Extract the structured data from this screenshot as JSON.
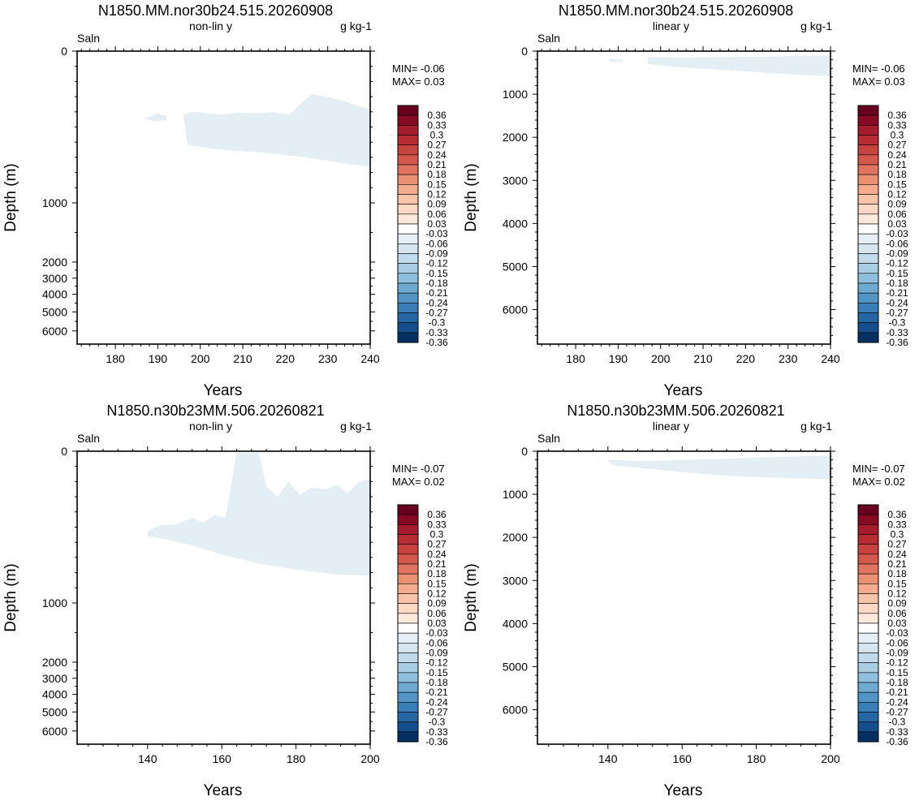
{
  "colorbar": {
    "labels": [
      "0.36",
      "0.33",
      "0.3",
      "0.27",
      "0.24",
      "0.21",
      "0.18",
      "0.15",
      "0.12",
      "0.09",
      "0.06",
      "0.03",
      "-0.03",
      "-0.06",
      "-0.09",
      "-0.12",
      "-0.15",
      "-0.18",
      "-0.21",
      "-0.24",
      "-0.27",
      "-0.3",
      "-0.33",
      "-0.36"
    ],
    "colors": [
      "#67001f",
      "#870a24",
      "#a51c2c",
      "#b82c33",
      "#c6433f",
      "#d3594d",
      "#df7561",
      "#ea9174",
      "#f3ac8e",
      "#f8c5aa",
      "#fbd9c4",
      "#fde8da",
      "#ffffff",
      "#e6eff6",
      "#d6e6f1",
      "#c2dbec",
      "#a9cde3",
      "#8ebfdc",
      "#6ea9d0",
      "#5295c5",
      "#3a7eb8",
      "#2566a3",
      "#154e8a",
      "#053061"
    ]
  },
  "chart_data": [
    {
      "type": "heatmap",
      "title": "N1850.MM.nor30b24.515.20260908",
      "left_label": "Saln",
      "center_label": "non-lin y",
      "right_label": "g kg-1",
      "xlabel": "Years",
      "ylabel": "Depth (m)",
      "y_scale": "non-linear",
      "xlim": [
        171,
        240
      ],
      "ylim": [
        0,
        6500
      ],
      "xticks": [
        180,
        190,
        200,
        210,
        220,
        230,
        240
      ],
      "yticks": [
        0,
        1000,
        2000,
        3000,
        4000,
        5000,
        6000
      ],
      "min_label": "MIN= -0.06",
      "max_label": "MAX=  0.03",
      "anomaly_regions": [
        {
          "interval": "-0.03 to 0.03",
          "color": "#e4eef5",
          "outline": [
            [
              188,
              430
            ],
            [
              190,
              410
            ],
            [
              192,
              428
            ],
            [
              192,
              455
            ],
            [
              189,
              462
            ],
            [
              187,
              445
            ],
            [
              188,
              430
            ],
            [
              196,
              420
            ],
            [
              198,
              400
            ],
            [
              201,
              408
            ],
            [
              205,
              418
            ],
            [
              209,
              406
            ],
            [
              213,
              410
            ],
            [
              217,
              402
            ],
            [
              221,
              420
            ],
            [
              226,
              284
            ],
            [
              230,
              300
            ],
            [
              235,
              340
            ],
            [
              238,
              370
            ],
            [
              240,
              380
            ],
            [
              240,
              760
            ],
            [
              235,
              745
            ],
            [
              225,
              700
            ],
            [
              215,
              670
            ],
            [
              205,
              650
            ],
            [
              197,
              620
            ],
            [
              196,
              420
            ]
          ]
        }
      ]
    },
    {
      "type": "heatmap",
      "title": "N1850.MM.nor30b24.515.20260908",
      "left_label": "Saln",
      "center_label": "linear y",
      "right_label": "g kg-1",
      "xlabel": "Years",
      "ylabel": "Depth (m)",
      "y_scale": "linear",
      "xlim": [
        171,
        240
      ],
      "ylim": [
        0,
        6800
      ],
      "xticks": [
        180,
        190,
        200,
        210,
        220,
        230,
        240
      ],
      "yticks": [
        0,
        1000,
        2000,
        3000,
        4000,
        5000,
        6000
      ],
      "min_label": "MIN= -0.06",
      "max_label": "MAX=  0.03",
      "anomaly_regions": [
        {
          "interval": "-0.03 to 0.03",
          "color": "#e4eef5",
          "outline": [
            [
              197,
              140
            ],
            [
              205,
              150
            ],
            [
              215,
              140
            ],
            [
              225,
              130
            ],
            [
              232,
              110
            ],
            [
              240,
              100
            ],
            [
              240,
              570
            ],
            [
              232,
              550
            ],
            [
              222,
              480
            ],
            [
              212,
              420
            ],
            [
              205,
              380
            ],
            [
              197,
              300
            ],
            [
              197,
              140
            ]
          ]
        },
        {
          "interval": "-0.03 to 0.03",
          "color": "#e4eef5",
          "outline": [
            [
              188,
              180
            ],
            [
              191,
              200
            ],
            [
              191,
              260
            ],
            [
              188,
              240
            ],
            [
              188,
              180
            ]
          ]
        }
      ]
    },
    {
      "type": "heatmap",
      "title": "N1850.n30b23MM.506.20260821",
      "left_label": "Saln",
      "center_label": "non-lin y",
      "right_label": "g kg-1",
      "xlabel": "Years",
      "ylabel": "Depth (m)",
      "y_scale": "non-linear",
      "xlim": [
        121,
        200
      ],
      "ylim": [
        0,
        6500
      ],
      "xticks": [
        140,
        160,
        180,
        200
      ],
      "yticks": [
        0,
        1000,
        2000,
        3000,
        4000,
        5000,
        6000
      ],
      "min_label": "MIN= -0.07",
      "max_label": "MAX=  0.02",
      "anomaly_regions": [
        {
          "interval": "-0.03 to 0.03",
          "color": "#e4eef5",
          "outline": [
            [
              140,
              530
            ],
            [
              143,
              490
            ],
            [
              148,
              480
            ],
            [
              152,
              440
            ],
            [
              155,
              470
            ],
            [
              158,
              420
            ],
            [
              161,
              440
            ],
            [
              164,
              10
            ],
            [
              170,
              10
            ],
            [
              172,
              230
            ],
            [
              175,
              300
            ],
            [
              178,
              200
            ],
            [
              181,
              290
            ],
            [
              184,
              240
            ],
            [
              188,
              250
            ],
            [
              191,
              220
            ],
            [
              194,
              280
            ],
            [
              197,
              200
            ],
            [
              200,
              180
            ],
            [
              200,
              820
            ],
            [
              190,
              810
            ],
            [
              180,
              780
            ],
            [
              170,
              740
            ],
            [
              160,
              680
            ],
            [
              152,
              620
            ],
            [
              145,
              580
            ],
            [
              140,
              560
            ],
            [
              140,
              530
            ]
          ]
        }
      ]
    },
    {
      "type": "heatmap",
      "title": "N1850.n30b23MM.506.20260821",
      "left_label": "Saln",
      "center_label": "linear y",
      "right_label": "g kg-1",
      "xlabel": "Years",
      "ylabel": "Depth (m)",
      "y_scale": "linear",
      "xlim": [
        121,
        200
      ],
      "ylim": [
        0,
        6800
      ],
      "xticks": [
        140,
        160,
        180,
        200
      ],
      "yticks": [
        0,
        1000,
        2000,
        3000,
        4000,
        5000,
        6000
      ],
      "min_label": "MIN= -0.07",
      "max_label": "MAX=  0.02",
      "anomaly_regions": [
        {
          "interval": "-0.03 to 0.03",
          "color": "#e4eef5",
          "outline": [
            [
              140,
              200
            ],
            [
              150,
              230
            ],
            [
              160,
              200
            ],
            [
              170,
              180
            ],
            [
              180,
              150
            ],
            [
              190,
              120
            ],
            [
              200,
              100
            ],
            [
              200,
              650
            ],
            [
              190,
              630
            ],
            [
              180,
              600
            ],
            [
              170,
              560
            ],
            [
              160,
              480
            ],
            [
              150,
              400
            ],
            [
              142,
              330
            ],
            [
              140,
              260
            ],
            [
              140,
              200
            ]
          ]
        }
      ]
    }
  ]
}
